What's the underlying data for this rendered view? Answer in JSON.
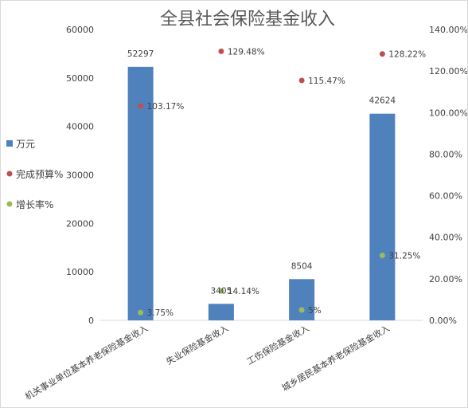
{
  "chart_data": {
    "type": "bar",
    "title": "全县社会保险基金收入",
    "categories": [
      "机关事业单位基本养老保险基金收入",
      "失业保险基金收入",
      "工伤保险基金收入",
      "城乡居民基本养老保险基金收入"
    ],
    "series": [
      {
        "name": "万元",
        "type": "bar",
        "axis": "left",
        "color": "#4f81bd",
        "values": [
          52297,
          3405,
          8504,
          42624
        ],
        "labels": [
          "52297",
          "3405",
          "8504",
          "42624"
        ]
      },
      {
        "name": "完成预算%",
        "type": "scatter",
        "axis": "right",
        "color": "#c0504d",
        "values": [
          103.17,
          129.48,
          115.47,
          128.22
        ],
        "labels": [
          "103.17%",
          "129.48%",
          "115.47%",
          "128.22%"
        ]
      },
      {
        "name": "增长率%",
        "type": "scatter",
        "axis": "right",
        "color": "#9bbb59",
        "values": [
          3.75,
          14.14,
          5,
          31.25
        ],
        "labels": [
          "3.75%",
          "14.14%",
          "5%",
          "31.25%"
        ]
      }
    ],
    "y_left": {
      "min": 0,
      "max": 60000,
      "ticks": [
        "0",
        "10000",
        "20000",
        "30000",
        "40000",
        "50000",
        "60000"
      ]
    },
    "y_right": {
      "min": 0,
      "max": 140,
      "ticks": [
        "0.00%",
        "20.00%",
        "40.00%",
        "60.00%",
        "80.00%",
        "100.00%",
        "120.00%",
        "140.00%"
      ]
    },
    "legend": "left",
    "grid": false
  }
}
